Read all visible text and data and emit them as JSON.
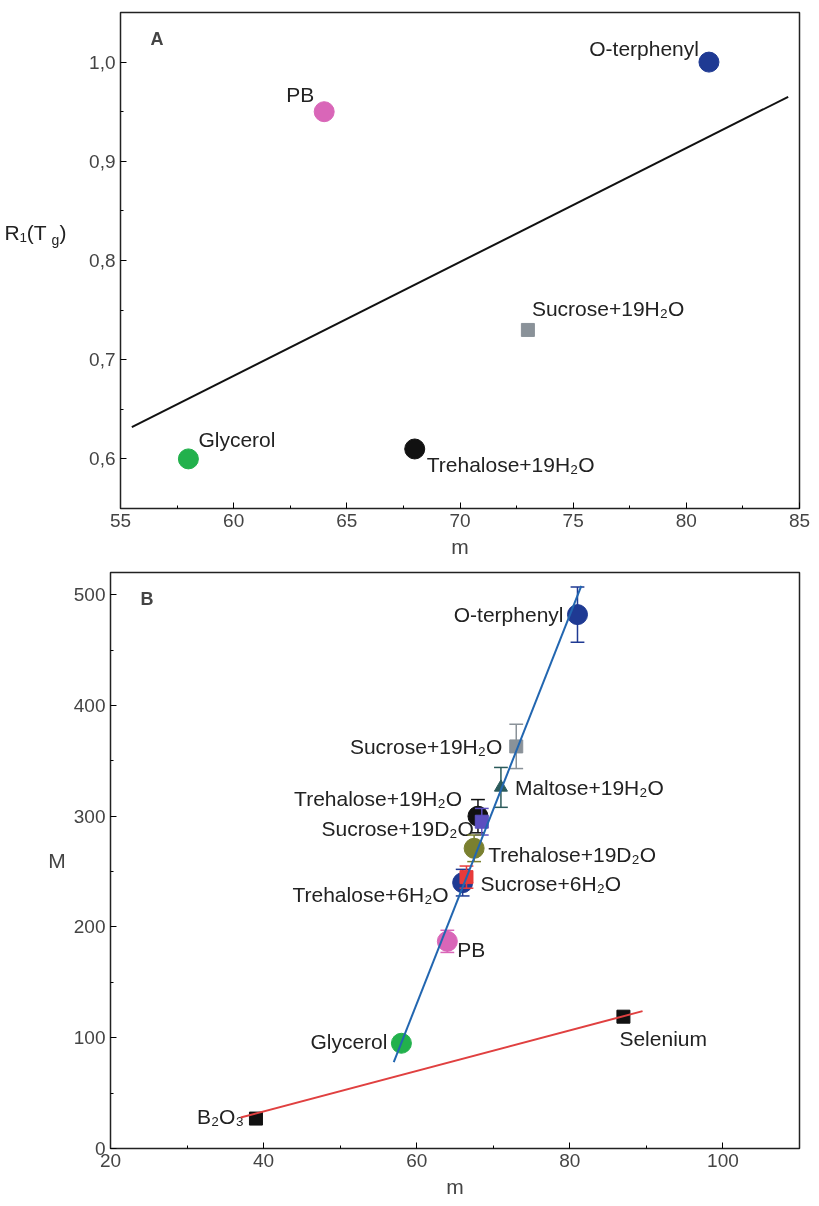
{
  "chart_data": [
    {
      "type": "scatter",
      "xlabel": "m",
      "ylabel": "R₁(T$_{g}$)",
      "annotations": [
        "A"
      ],
      "xlim": [
        55,
        85
      ],
      "xticks": [
        55,
        60,
        65,
        70,
        75,
        80,
        85
      ],
      "ylim": [
        0.55,
        1.05
      ],
      "yticks": [
        {
          "value": 0.6,
          "label": "0,6"
        },
        {
          "value": 0.7,
          "label": "0,7"
        },
        {
          "value": 0.8,
          "label": "0,8"
        },
        {
          "value": 0.9,
          "label": "0,9"
        },
        {
          "value": 1.0,
          "label": "1,0"
        }
      ],
      "series": [
        {
          "name": "Glycerol",
          "color": "#22b14c",
          "marker": "circle",
          "x": [
            58
          ],
          "values": [
            0.6
          ]
        },
        {
          "name": "PB",
          "color": "#d966b8",
          "marker": "circle",
          "x": [
            64
          ],
          "values": [
            0.95
          ]
        },
        {
          "name": "Trehalose+19H₂O",
          "color": "#111111",
          "marker": "circle",
          "x": [
            68
          ],
          "values": [
            0.61
          ]
        },
        {
          "name": "Sucrose+19H₂O",
          "color": "#8a9299",
          "marker": "square",
          "x": [
            73
          ],
          "values": [
            0.73
          ]
        },
        {
          "name": "O-terphenyl",
          "color": "#1f3a93",
          "marker": "circle",
          "x": [
            81
          ],
          "values": [
            1.0
          ]
        },
        {
          "type": "line",
          "color": "#111111",
          "x": [
            55.5,
            84.5
          ],
          "values": [
            0.632,
            0.965
          ]
        }
      ]
    },
    {
      "type": "scatter",
      "xlabel": "m",
      "ylabel": "M",
      "annotations": [
        "B"
      ],
      "xlim": [
        20,
        110
      ],
      "xticks": [
        20,
        40,
        60,
        80,
        100
      ],
      "ylim": [
        0,
        520
      ],
      "yticks": [
        0,
        100,
        200,
        300,
        400,
        500
      ],
      "series": [
        {
          "name": "O-terphenyl",
          "color": "#1f3a93",
          "marker": "circle",
          "x": [
            81
          ],
          "values": [
            482
          ],
          "errors": [
            25
          ]
        },
        {
          "name": "Sucrose+19H₂O",
          "color": "#8a9299",
          "marker": "square",
          "x": [
            73
          ],
          "values": [
            363
          ],
          "errors": [
            20
          ]
        },
        {
          "name": "Maltose+19H₂O",
          "color": "#2a5a5a",
          "marker": "triangle",
          "x": [
            71
          ],
          "values": [
            326
          ],
          "errors": [
            18
          ]
        },
        {
          "name": "Trehalose+19H₂O",
          "color": "#111111",
          "marker": "circle",
          "x": [
            68
          ],
          "values": [
            300
          ],
          "errors": [
            15
          ]
        },
        {
          "name": "Sucrose+19D₂O",
          "color": "#5b4fc0",
          "marker": "square",
          "x": [
            68.5
          ],
          "values": [
            295
          ],
          "errors": [
            12
          ]
        },
        {
          "name": "Trehalose+19D₂O",
          "color": "#7a8030",
          "marker": "circle",
          "x": [
            67.5
          ],
          "values": [
            271
          ],
          "errors": [
            12
          ]
        },
        {
          "name": "Trehalose+6H₂O",
          "color": "#1f3a93",
          "marker": "circle",
          "x": [
            66
          ],
          "values": [
            240
          ],
          "errors": [
            12
          ]
        },
        {
          "name": "Sucrose+6H₂O",
          "color": "#e83a3a",
          "marker": "square",
          "x": [
            66.5
          ],
          "values": [
            245
          ],
          "errors": [
            10
          ]
        },
        {
          "name": "PB",
          "color": "#d966b8",
          "marker": "circle",
          "x": [
            64
          ],
          "values": [
            187
          ],
          "errors": [
            10
          ]
        },
        {
          "name": "Glycerol",
          "color": "#22b14c",
          "marker": "circle",
          "x": [
            58
          ],
          "values": [
            95
          ]
        },
        {
          "name": "B₂O₃",
          "color": "#111111",
          "marker": "square",
          "x": [
            39
          ],
          "values": [
            27
          ]
        },
        {
          "name": "Selenium",
          "color": "#111111",
          "marker": "square",
          "x": [
            87
          ],
          "values": [
            119
          ]
        },
        {
          "type": "line",
          "color": "#2266b0",
          "x": [
            57,
            81.5
          ],
          "values": [
            78,
            508
          ]
        },
        {
          "type": "line",
          "color": "#e04040",
          "x": [
            37,
            89.5
          ],
          "values": [
            28,
            124
          ]
        }
      ]
    }
  ]
}
